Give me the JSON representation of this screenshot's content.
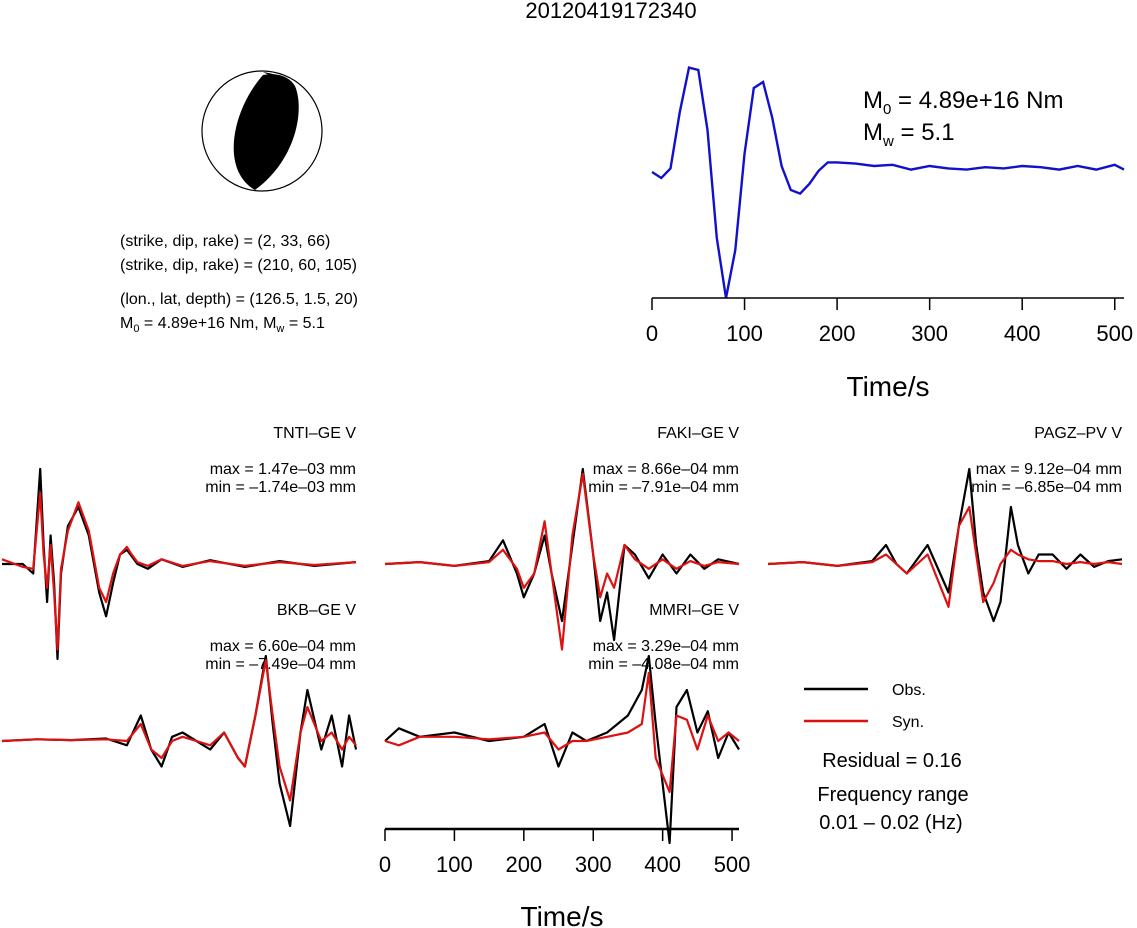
{
  "title": "20120419172340",
  "source_time_function": {
    "m0_label": "M",
    "m0_sub": "0",
    "m0_text": " = 4.89e+16 Nm",
    "mw_label": "M",
    "mw_sub": "w",
    "mw_text": " = 5.1",
    "xlabel": "Time/s"
  },
  "mechanism": {
    "line1": "(strike, dip, rake) = (2, 33, 66)",
    "line2": "(strike, dip, rake) = (210, 60, 105)",
    "line3": "(lon., lat, depth) = (126.5, 1.5, 20)",
    "line4_a": "M",
    "line4_sub0": "0",
    "line4_b": " = 4.89e+16 Nm, M",
    "line4_subw": "w",
    "line4_c": " = 5.1"
  },
  "stations": [
    {
      "name": "TNTI–GE V",
      "max": "max = 1.47e–03 mm",
      "min": "min = –1.74e–03 mm"
    },
    {
      "name": "FAKI–GE V",
      "max": "max = 8.66e–04 mm",
      "min": "min = –7.91e–04 mm"
    },
    {
      "name": "PAGZ–PV V",
      "max": "max = 9.12e–04 mm",
      "min": "min = –6.85e–04 mm"
    },
    {
      "name": "BKB–GE V",
      "max": "max = 6.60e–04 mm",
      "min": "min = –7.49e–04 mm"
    },
    {
      "name": "MMRI–GE V",
      "max": "max = 3.29e–04 mm",
      "min": "min = –4.08e–04 mm"
    }
  ],
  "legend": {
    "obs": "Obs.",
    "syn": "Syn.",
    "residual": "Residual = 0.16",
    "freq_title": "Frequency range",
    "freq_range": "0.01 – 0.02 (Hz)"
  },
  "bottom_axis": {
    "xlabel": "Time/s"
  },
  "colors": {
    "obs": "#000000",
    "syn": "#dd1111",
    "stf": "#1111cc"
  },
  "chart_data": [
    {
      "type": "line",
      "name": "source time function",
      "xlim": [
        0,
        510
      ],
      "ticks": [
        0,
        100,
        200,
        300,
        400,
        500
      ],
      "x": [
        0,
        10,
        20,
        30,
        40,
        50,
        60,
        70,
        80,
        90,
        100,
        110,
        120,
        130,
        140,
        150,
        160,
        170,
        180,
        190,
        200,
        220,
        240,
        260,
        280,
        300,
        320,
        340,
        360,
        380,
        400,
        420,
        440,
        460,
        480,
        500,
        510
      ],
      "y": [
        0.05,
        0.0,
        0.08,
        0.55,
        0.92,
        0.9,
        0.4,
        -0.5,
        -1.0,
        -0.6,
        0.2,
        0.75,
        0.8,
        0.5,
        0.1,
        -0.1,
        -0.13,
        -0.05,
        0.06,
        0.13,
        0.13,
        0.12,
        0.1,
        0.11,
        0.07,
        0.1,
        0.08,
        0.07,
        0.09,
        0.08,
        0.1,
        0.09,
        0.07,
        0.1,
        0.07,
        0.11,
        0.07
      ]
    },
    {
      "type": "line",
      "name": "TNTI–GE V",
      "xlim": [
        0,
        510
      ],
      "series": [
        {
          "name": "Obs.",
          "x": [
            0,
            30,
            45,
            55,
            60,
            65,
            70,
            75,
            80,
            85,
            95,
            110,
            125,
            140,
            150,
            160,
            170,
            180,
            185,
            195,
            210,
            230,
            260,
            300,
            350,
            400,
            450,
            510
          ],
          "y": [
            0,
            0,
            -0.1,
            1.0,
            0.2,
            -0.4,
            0.3,
            -0.2,
            -1.0,
            -0.1,
            0.4,
            0.6,
            0.3,
            -0.3,
            -0.55,
            -0.2,
            0.1,
            0.15,
            0.1,
            0.0,
            -0.05,
            0.05,
            -0.03,
            0.04,
            -0.03,
            0.03,
            -0.02,
            0.02
          ]
        },
        {
          "name": "Syn.",
          "x": [
            0,
            30,
            45,
            55,
            60,
            65,
            70,
            75,
            80,
            85,
            95,
            110,
            125,
            140,
            150,
            160,
            170,
            180,
            185,
            195,
            210,
            230,
            260,
            300,
            350,
            400,
            450,
            510
          ],
          "y": [
            0.05,
            -0.03,
            -0.05,
            0.75,
            0.1,
            -0.25,
            0.2,
            -0.3,
            -0.9,
            -0.05,
            0.35,
            0.65,
            0.35,
            -0.25,
            -0.4,
            -0.1,
            0.1,
            0.18,
            0.12,
            0.02,
            -0.02,
            0.05,
            -0.02,
            0.03,
            -0.02,
            0.02,
            -0.01,
            0.02
          ]
        }
      ]
    },
    {
      "type": "line",
      "name": "FAKI–GE V",
      "xlim": [
        0,
        510
      ],
      "series": [
        {
          "name": "Obs.",
          "x": [
            0,
            50,
            100,
            150,
            170,
            190,
            200,
            215,
            230,
            240,
            255,
            270,
            285,
            300,
            310,
            320,
            330,
            345,
            360,
            380,
            400,
            420,
            440,
            460,
            480,
            510
          ],
          "y": [
            0,
            0.02,
            -0.02,
            0.03,
            0.25,
            -0.1,
            -0.35,
            -0.1,
            0.3,
            -0.1,
            -0.6,
            0.2,
            1.0,
            0.1,
            -0.6,
            -0.3,
            -0.8,
            0.2,
            0.1,
            -0.15,
            0.1,
            -0.1,
            0.1,
            -0.05,
            0.05,
            0.0
          ]
        },
        {
          "name": "Syn.",
          "x": [
            0,
            50,
            100,
            150,
            170,
            190,
            200,
            215,
            230,
            240,
            255,
            270,
            285,
            300,
            310,
            320,
            330,
            345,
            360,
            380,
            400,
            420,
            440,
            460,
            480,
            510
          ],
          "y": [
            0,
            0.02,
            -0.02,
            0.02,
            0.15,
            -0.05,
            -0.25,
            -0.1,
            0.45,
            -0.1,
            -0.9,
            0.3,
            0.95,
            0.1,
            -0.35,
            -0.1,
            -0.25,
            0.2,
            0.05,
            -0.05,
            0.05,
            -0.05,
            0.03,
            -0.02,
            0.02,
            0.0
          ]
        }
      ]
    },
    {
      "type": "line",
      "name": "PAGZ–PV V",
      "xlim": [
        0,
        510
      ],
      "series": [
        {
          "name": "Obs.",
          "x": [
            0,
            50,
            100,
            150,
            170,
            185,
            200,
            230,
            260,
            275,
            290,
            300,
            310,
            325,
            335,
            350,
            360,
            375,
            390,
            410,
            430,
            450,
            470,
            490,
            510
          ],
          "y": [
            0,
            0.02,
            -0.02,
            0.03,
            0.2,
            0.0,
            -0.1,
            0.2,
            -0.3,
            0.4,
            1.0,
            0.2,
            -0.3,
            -0.6,
            -0.4,
            0.6,
            0.2,
            -0.1,
            0.1,
            0.1,
            -0.05,
            0.1,
            -0.03,
            0.03,
            0.05
          ]
        },
        {
          "name": "Syn.",
          "x": [
            0,
            50,
            100,
            150,
            170,
            185,
            200,
            230,
            260,
            275,
            290,
            300,
            310,
            325,
            335,
            350,
            360,
            375,
            390,
            410,
            430,
            450,
            470,
            490,
            510
          ],
          "y": [
            0,
            0.02,
            -0.02,
            0.02,
            0.1,
            0.0,
            -0.1,
            0.1,
            -0.45,
            0.4,
            0.6,
            0.1,
            -0.4,
            -0.2,
            0.0,
            0.15,
            0.1,
            0.05,
            0.03,
            0.03,
            0.0,
            0.02,
            0.0,
            0.02,
            0.0
          ]
        }
      ]
    },
    {
      "type": "line",
      "name": "BKB–GE V",
      "xlim": [
        0,
        510
      ],
      "series": [
        {
          "name": "Obs.",
          "x": [
            0,
            50,
            100,
            150,
            180,
            200,
            215,
            230,
            245,
            260,
            280,
            300,
            320,
            340,
            350,
            365,
            380,
            390,
            400,
            415,
            430,
            440,
            460,
            475,
            490,
            500,
            510
          ],
          "y": [
            0,
            0.02,
            0.01,
            0.03,
            -0.05,
            0.3,
            -0.1,
            -0.3,
            0.05,
            0.1,
            0.0,
            -0.1,
            0.1,
            -0.2,
            -0.3,
            0.3,
            1.0,
            0.2,
            -0.5,
            -1.0,
            0.1,
            0.6,
            -0.1,
            0.3,
            -0.3,
            0.3,
            -0.1
          ]
        },
        {
          "name": "Syn.",
          "x": [
            0,
            50,
            100,
            150,
            180,
            200,
            215,
            230,
            245,
            260,
            280,
            300,
            320,
            340,
            350,
            365,
            380,
            390,
            400,
            415,
            430,
            440,
            460,
            475,
            490,
            500,
            510
          ],
          "y": [
            0,
            0.02,
            0.01,
            0.02,
            0.0,
            0.2,
            -0.1,
            -0.2,
            0.0,
            0.05,
            0.0,
            -0.05,
            0.1,
            -0.2,
            -0.3,
            0.3,
            0.95,
            0.3,
            -0.3,
            -0.7,
            0.1,
            0.4,
            0.0,
            0.1,
            -0.1,
            0.05,
            -0.05
          ]
        }
      ]
    },
    {
      "type": "line",
      "name": "MMRI–GE V",
      "xlim": [
        0,
        510
      ],
      "ticks": [
        0,
        100,
        200,
        300,
        400,
        500
      ],
      "xlabel": "Time/s",
      "series": [
        {
          "name": "Obs.",
          "x": [
            0,
            20,
            50,
            100,
            150,
            200,
            230,
            250,
            270,
            290,
            320,
            350,
            370,
            380,
            390,
            400,
            410,
            420,
            435,
            450,
            465,
            480,
            495,
            510
          ],
          "y": [
            0,
            0.15,
            0.05,
            0.1,
            0.0,
            0.05,
            0.2,
            -0.3,
            0.1,
            0.0,
            0.1,
            0.3,
            0.6,
            1.0,
            0.2,
            -0.5,
            -1.2,
            0.4,
            0.6,
            0.1,
            0.35,
            -0.2,
            0.1,
            -0.1
          ]
        },
        {
          "name": "Syn.",
          "x": [
            0,
            20,
            50,
            100,
            150,
            200,
            230,
            250,
            270,
            290,
            320,
            350,
            370,
            380,
            390,
            400,
            410,
            420,
            435,
            450,
            465,
            480,
            495,
            510
          ],
          "y": [
            0,
            -0.05,
            0.05,
            0.05,
            0.02,
            0.05,
            0.1,
            -0.1,
            0.0,
            0.0,
            0.05,
            0.1,
            0.2,
            0.8,
            -0.2,
            -0.4,
            -0.6,
            0.3,
            0.25,
            -0.1,
            0.3,
            0.0,
            0.1,
            0.0
          ]
        }
      ]
    }
  ]
}
